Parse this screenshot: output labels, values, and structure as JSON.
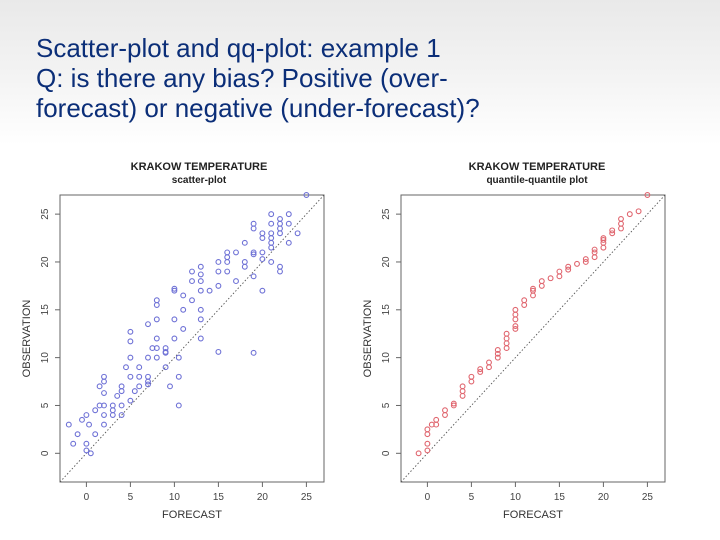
{
  "slide": {
    "title_lines": [
      "Scatter-plot and qq-plot: example 1",
      "Q: is there any bias? Positive (over-",
      "forecast) or negative (under-forecast)?"
    ]
  },
  "colors": {
    "scatter_points": "#6f72d6",
    "qq_points": "#e0666f",
    "title": "#0b2e78",
    "axes": "#666666"
  },
  "chart_data": [
    {
      "type": "scatter",
      "title": "KRAKOW TEMPERATURE",
      "subtitle": "scatter-plot",
      "xlabel": "FORECAST",
      "ylabel": "OBSERVATION",
      "xlim": [
        -3,
        27
      ],
      "ylim": [
        -3,
        27
      ],
      "x_ticks": [
        0,
        5,
        10,
        15,
        20,
        25
      ],
      "y_ticks": [
        0,
        5,
        10,
        15,
        20,
        25
      ],
      "reference_line": "y = x (dotted)",
      "grid": false,
      "points": [
        [
          -2,
          3
        ],
        [
          -1.5,
          1
        ],
        [
          -1,
          2
        ],
        [
          -0.5,
          3.5
        ],
        [
          0,
          1
        ],
        [
          0,
          0.3
        ],
        [
          0,
          4
        ],
        [
          0.3,
          3
        ],
        [
          0.5,
          0
        ],
        [
          1,
          2
        ],
        [
          1,
          4.5
        ],
        [
          1.5,
          5
        ],
        [
          1.5,
          7
        ],
        [
          2,
          3
        ],
        [
          2,
          4
        ],
        [
          2,
          5
        ],
        [
          2,
          8
        ],
        [
          2,
          7.5
        ],
        [
          2,
          6.3
        ],
        [
          3,
          4.5
        ],
        [
          3,
          4
        ],
        [
          3,
          5
        ],
        [
          3.5,
          6
        ],
        [
          4,
          7
        ],
        [
          4,
          6.5
        ],
        [
          4,
          5
        ],
        [
          4,
          4
        ],
        [
          4.5,
          9
        ],
        [
          5,
          10
        ],
        [
          5,
          11.7
        ],
        [
          5,
          12.7
        ],
        [
          5,
          8
        ],
        [
          5,
          5.5
        ],
        [
          5.5,
          6.5
        ],
        [
          6,
          8
        ],
        [
          6,
          9
        ],
        [
          6,
          7
        ],
        [
          7,
          13.5
        ],
        [
          7,
          10
        ],
        [
          7,
          8
        ],
        [
          7,
          7.5
        ],
        [
          7,
          7.2
        ],
        [
          7.5,
          11
        ],
        [
          8,
          10
        ],
        [
          8,
          11
        ],
        [
          8,
          12
        ],
        [
          8,
          14
        ],
        [
          8,
          16
        ],
        [
          8,
          15.5
        ],
        [
          9,
          11
        ],
        [
          9,
          10.5
        ],
        [
          9,
          10.6
        ],
        [
          9,
          9
        ],
        [
          9.5,
          7
        ],
        [
          10,
          12
        ],
        [
          10,
          14
        ],
        [
          10,
          17
        ],
        [
          10,
          17.2
        ],
        [
          10.5,
          5
        ],
        [
          10.5,
          8
        ],
        [
          10.5,
          10
        ],
        [
          11,
          15
        ],
        [
          11,
          13
        ],
        [
          11,
          16.5
        ],
        [
          12,
          19
        ],
        [
          12,
          18
        ],
        [
          12,
          16
        ],
        [
          13,
          17
        ],
        [
          13,
          18
        ],
        [
          13,
          18.7
        ],
        [
          13,
          19.5
        ],
        [
          13,
          15
        ],
        [
          13,
          14
        ],
        [
          13,
          12
        ],
        [
          14,
          17
        ],
        [
          15,
          17.5
        ],
        [
          15,
          19
        ],
        [
          15,
          20
        ],
        [
          15,
          10.6
        ],
        [
          16,
          20
        ],
        [
          16,
          20.5
        ],
        [
          16,
          21
        ],
        [
          16,
          19
        ],
        [
          17,
          21
        ],
        [
          17,
          18
        ],
        [
          18,
          20
        ],
        [
          18,
          19.5
        ],
        [
          18,
          22
        ],
        [
          19,
          20.8
        ],
        [
          19,
          21
        ],
        [
          19,
          24
        ],
        [
          19,
          23.5
        ],
        [
          19,
          18.5
        ],
        [
          19,
          10.5
        ],
        [
          20,
          20.3
        ],
        [
          20,
          21
        ],
        [
          20,
          23
        ],
        [
          20,
          22.5
        ],
        [
          20,
          17
        ],
        [
          21,
          24
        ],
        [
          21,
          25
        ],
        [
          21,
          23
        ],
        [
          21,
          22.5
        ],
        [
          21,
          22
        ],
        [
          21,
          21.5
        ],
        [
          21,
          20
        ],
        [
          22,
          24.5
        ],
        [
          22,
          24
        ],
        [
          22,
          23.5
        ],
        [
          22,
          23
        ],
        [
          22,
          19.5
        ],
        [
          22,
          19
        ],
        [
          23,
          25
        ],
        [
          23,
          24
        ],
        [
          23,
          22
        ],
        [
          24,
          23
        ],
        [
          25,
          27
        ]
      ]
    },
    {
      "type": "scatter",
      "title": "KRAKOW TEMPERATURE",
      "subtitle": "quantile-quantile plot",
      "xlabel": "FORECAST",
      "ylabel": "OBSERVATION",
      "xlim": [
        -3,
        27
      ],
      "ylim": [
        -3,
        27
      ],
      "x_ticks": [
        0,
        5,
        10,
        15,
        20,
        25
      ],
      "y_ticks": [
        0,
        5,
        10,
        15,
        20,
        25
      ],
      "reference_line": "y = x (dotted)",
      "grid": false,
      "points": [
        [
          -1,
          0
        ],
        [
          0,
          0.3
        ],
        [
          0,
          1
        ],
        [
          0,
          2
        ],
        [
          0,
          2.5
        ],
        [
          0.5,
          3
        ],
        [
          1,
          3.5
        ],
        [
          1,
          3
        ],
        [
          2,
          4
        ],
        [
          2,
          4.5
        ],
        [
          3,
          5
        ],
        [
          3,
          5.2
        ],
        [
          4,
          6
        ],
        [
          4,
          6.5
        ],
        [
          4,
          7
        ],
        [
          5,
          7.5
        ],
        [
          5,
          8
        ],
        [
          6,
          8.5
        ],
        [
          6,
          8.8
        ],
        [
          7,
          9
        ],
        [
          7,
          9.5
        ],
        [
          8,
          10
        ],
        [
          8,
          10.4
        ],
        [
          8,
          10.8
        ],
        [
          9,
          11
        ],
        [
          9,
          11.5
        ],
        [
          9,
          12
        ],
        [
          9,
          12.5
        ],
        [
          10,
          13
        ],
        [
          10,
          13.3
        ],
        [
          10,
          14
        ],
        [
          10,
          14.5
        ],
        [
          10,
          15
        ],
        [
          11,
          15.5
        ],
        [
          11,
          16
        ],
        [
          12,
          16.5
        ],
        [
          12,
          17
        ],
        [
          12,
          17.2
        ],
        [
          13,
          17.5
        ],
        [
          13,
          18
        ],
        [
          14,
          18.3
        ],
        [
          15,
          18.5
        ],
        [
          15,
          19
        ],
        [
          16,
          19.2
        ],
        [
          16,
          19.5
        ],
        [
          17,
          19.8
        ],
        [
          18,
          20
        ],
        [
          18,
          20.3
        ],
        [
          19,
          20.5
        ],
        [
          19,
          21
        ],
        [
          19,
          21.3
        ],
        [
          20,
          21.5
        ],
        [
          20,
          22
        ],
        [
          20,
          22.3
        ],
        [
          20,
          22.5
        ],
        [
          21,
          23
        ],
        [
          21,
          23.3
        ],
        [
          22,
          23.5
        ],
        [
          22,
          24
        ],
        [
          22,
          24.5
        ],
        [
          23,
          25
        ],
        [
          24,
          25.3
        ],
        [
          25,
          27
        ]
      ]
    }
  ]
}
